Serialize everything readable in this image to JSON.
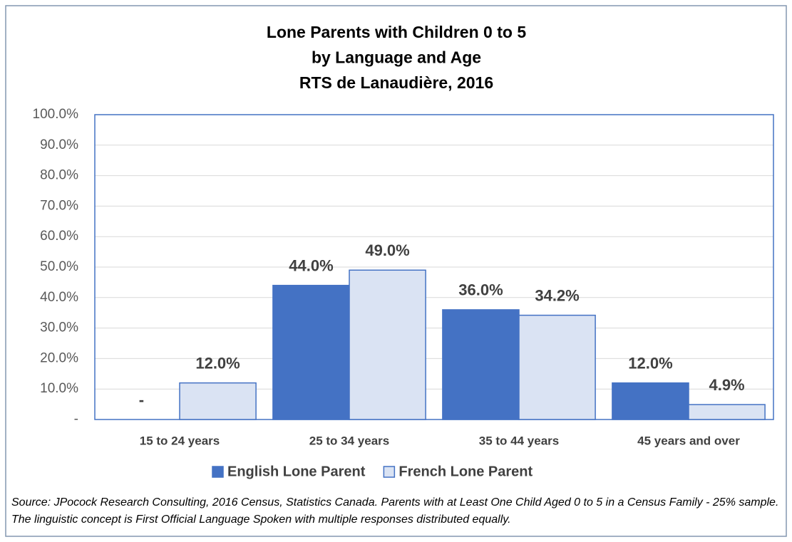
{
  "chart_data": {
    "type": "bar",
    "title": [
      "Lone Parents with Children 0 to 5",
      "by Language and Age",
      "RTS de Lanaudière, 2016"
    ],
    "categories": [
      "15 to 24 years",
      "25 to 34 years",
      "35 to 44 years",
      "45 years and over"
    ],
    "series": [
      {
        "name": "English Lone Parent",
        "color": "#4472c4",
        "values": [
          0,
          44.0,
          36.0,
          12.0
        ],
        "value_labels": [
          "-",
          "44.0%",
          "36.0%",
          "12.0%"
        ]
      },
      {
        "name": "French Lone Parent",
        "color": "#dae3f3",
        "values": [
          12.0,
          49.0,
          34.2,
          4.9
        ],
        "value_labels": [
          "12.0%",
          "49.0%",
          "34.2%",
          "4.9%"
        ]
      }
    ],
    "ylim": [
      0,
      100
    ],
    "yticks": [
      {
        "value": 0,
        "label": "-"
      },
      {
        "value": 10,
        "label": "10.0%"
      },
      {
        "value": 20,
        "label": "20.0%"
      },
      {
        "value": 30,
        "label": "30.0%"
      },
      {
        "value": 40,
        "label": "40.0%"
      },
      {
        "value": 50,
        "label": "50.0%"
      },
      {
        "value": 60,
        "label": "60.0%"
      },
      {
        "value": 70,
        "label": "70.0%"
      },
      {
        "value": 80,
        "label": "80.0%"
      },
      {
        "value": 90,
        "label": "90.0%"
      },
      {
        "value": 100,
        "label": "100.0%"
      }
    ],
    "grid": true,
    "legend": "bottom",
    "source": "Source: JPocock Research Consulting, 2016 Census, Statistics Canada. Parents with at Least One Child Aged 0 to 5 in a Census Family - 25% sample. The linguistic concept is First Official Language Spoken with multiple responses distributed equally."
  }
}
